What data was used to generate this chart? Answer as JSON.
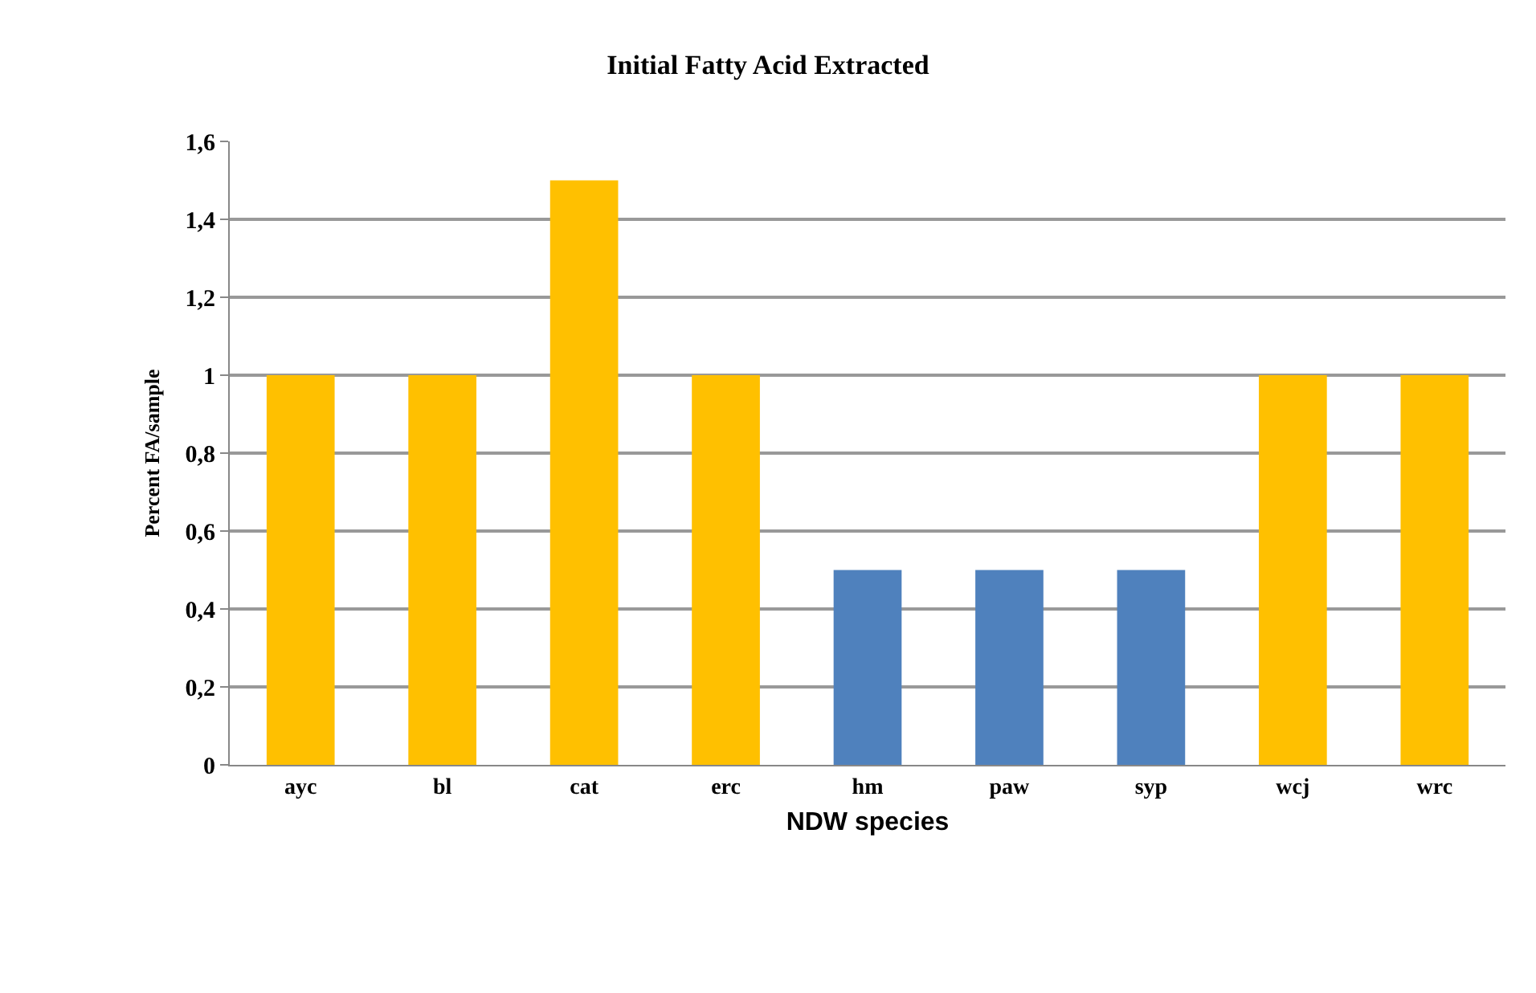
{
  "chart_data": {
    "type": "bar",
    "title": "Initial Fatty Acid Extracted",
    "xlabel": "NDW species",
    "ylabel": "Percent FA/sample",
    "categories": [
      "ayc",
      "bl",
      "cat",
      "erc",
      "hm",
      "paw",
      "syp",
      "wcj",
      "wrc"
    ],
    "values": [
      1,
      1,
      1.5,
      1,
      0.5,
      0.5,
      0.5,
      1,
      1
    ],
    "colors": [
      "#ffc000",
      "#ffc000",
      "#ffc000",
      "#ffc000",
      "#4f81bd",
      "#4f81bd",
      "#4f81bd",
      "#ffc000",
      "#ffc000"
    ],
    "ylim": [
      0,
      1.6
    ],
    "yticks": [
      0,
      {
        "value": 0.2,
        "label": "0,2"
      },
      {
        "value": 0.4,
        "label": "0,4"
      },
      {
        "value": 0.6,
        "label": "0,6"
      },
      {
        "value": 0.8,
        "label": "0,8"
      },
      1,
      {
        "value": 1.2,
        "label": "1,2"
      },
      {
        "value": 1.4,
        "label": "1,4"
      },
      {
        "value": 1.6,
        "label": "1,6"
      }
    ],
    "grid": "y"
  }
}
